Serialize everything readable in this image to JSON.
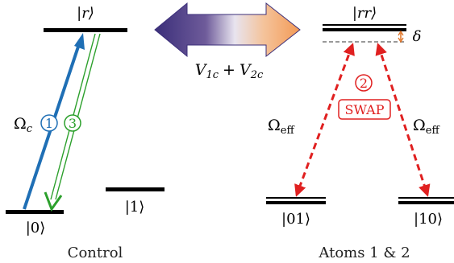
{
  "colors": {
    "level": "#000000",
    "omega_c_arrow": "#1f6fb5",
    "return_arrow": "#2ca02c",
    "swap_arrow": "#e02020",
    "detuning_marker": "#e07020",
    "dashed_level": "#9a9a9a",
    "interaction_arrow_left": "#3b2f7a",
    "interaction_arrow_right": "#f39a55"
  },
  "control": {
    "state_r": "|r⟩",
    "state_0": "|0⟩",
    "state_1": "|1⟩",
    "omega_symbol": "Ω",
    "omega_sub": "c",
    "step_1": "1",
    "step_3": "3",
    "caption": "Control"
  },
  "interaction": {
    "v1_main": "V",
    "v1_sub": "1c",
    "plus": "+",
    "v2_main": "V",
    "v2_sub": "2c"
  },
  "atoms": {
    "state_rr": "|rr⟩",
    "delta": "δ",
    "step_2": "2",
    "swap_label": "SWAP",
    "omega_left_symbol": "Ω",
    "omega_left_sub": "eff",
    "omega_right_symbol": "Ω",
    "omega_right_sub": "eff",
    "state_01": "|01⟩",
    "state_10": "|10⟩",
    "caption": "Atoms 1 & 2"
  }
}
